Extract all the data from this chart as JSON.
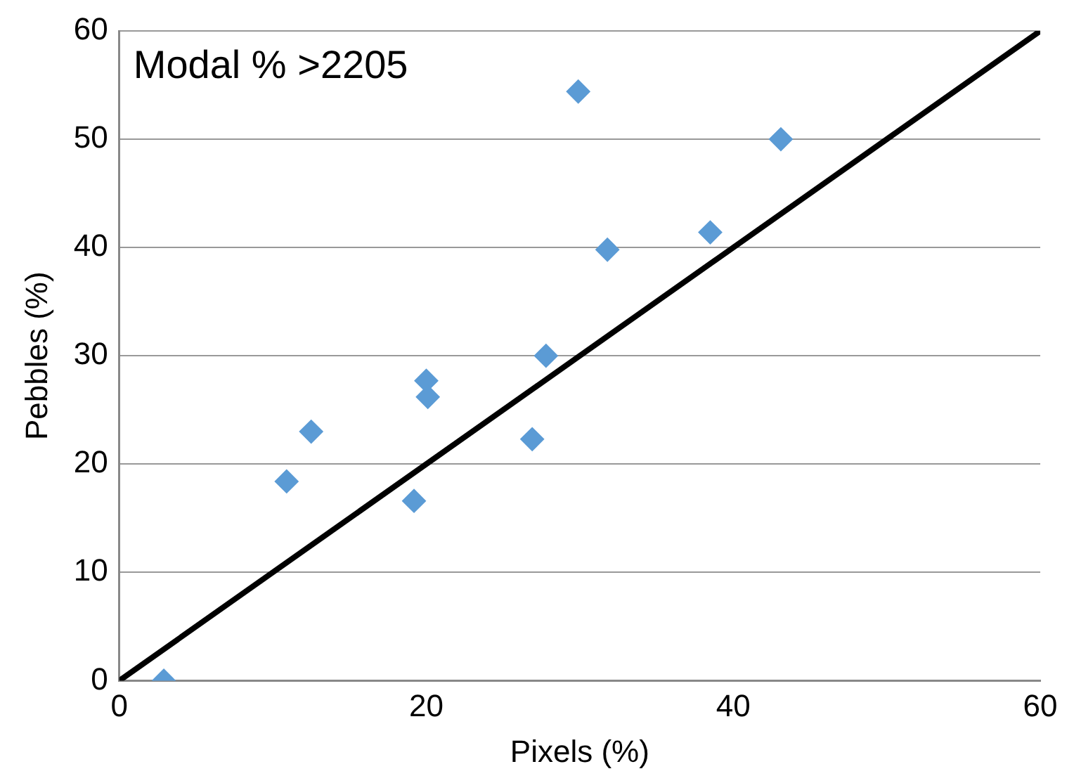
{
  "chart_data": {
    "type": "scatter",
    "xlabel": "Pixels (%)",
    "ylabel": "Pebbles (%)",
    "annotations": [
      "Modal % >2205"
    ],
    "xlim": [
      0,
      60
    ],
    "xticks": [
      0,
      20,
      40,
      60
    ],
    "ylim": [
      0,
      60
    ],
    "yticks": [
      0,
      10,
      20,
      30,
      40,
      50,
      60
    ],
    "grid": "y",
    "legend": false,
    "series": [
      {
        "type": "scatter",
        "marker": "diamond",
        "color": "#5b9bd5",
        "x": [
          2.9,
          10.9,
          12.5,
          19.2,
          20.0,
          20.1,
          26.9,
          27.8,
          29.9,
          31.8,
          38.5,
          43.1
        ],
        "values": [
          0,
          18.4,
          23.0,
          16.6,
          27.7,
          26.2,
          22.3,
          30.0,
          54.4,
          39.8,
          41.4,
          50.0
        ]
      },
      {
        "type": "line",
        "marker": "none",
        "color": "#000000",
        "x": [
          0,
          60
        ],
        "values": [
          0,
          60
        ]
      }
    ]
  }
}
